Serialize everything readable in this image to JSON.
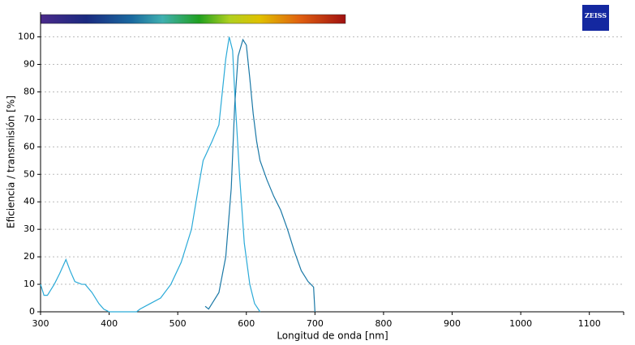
{
  "logo": "ZEISS",
  "chart_data": {
    "type": "line",
    "xlabel": "Longitud de onda [nm]",
    "ylabel": "Eficiencia / transmisión [%]",
    "xlim": [
      300,
      1150
    ],
    "ylim": [
      0,
      109
    ],
    "xticks": [
      300,
      400,
      500,
      600,
      700,
      800,
      900,
      1000,
      1100
    ],
    "yticks": [
      0,
      10,
      20,
      30,
      40,
      50,
      60,
      70,
      80,
      90,
      100
    ],
    "grid": true,
    "series": [
      {
        "color": "#2aaad8",
        "x": [
          300,
          305,
          310,
          320,
          328,
          337,
          343,
          350,
          360,
          365,
          375,
          385,
          392,
          400,
          420,
          440,
          445,
          460,
          475,
          490,
          505,
          520,
          530,
          537,
          550,
          560,
          565,
          570,
          575,
          580,
          583,
          590,
          597,
          605,
          612,
          620
        ],
        "values": [
          10,
          6,
          6,
          10,
          14,
          19,
          15,
          11,
          10,
          10,
          7,
          3,
          1,
          0,
          0,
          0,
          1,
          3,
          5,
          10,
          18,
          30,
          45,
          55,
          62,
          68,
          80,
          92,
          100,
          95,
          80,
          50,
          25,
          10,
          3,
          0
        ]
      },
      {
        "color": "#1a78a6",
        "x": [
          540,
          545,
          550,
          560,
          570,
          578,
          583,
          588,
          595,
          600,
          605,
          610,
          615,
          620,
          630,
          640,
          650,
          660,
          670,
          680,
          690,
          698,
          700
        ],
        "values": [
          2,
          1,
          3,
          7,
          20,
          45,
          75,
          93,
          99,
          97,
          85,
          72,
          62,
          55,
          48,
          42,
          37,
          30,
          22,
          15,
          11,
          9,
          0
        ]
      }
    ]
  }
}
